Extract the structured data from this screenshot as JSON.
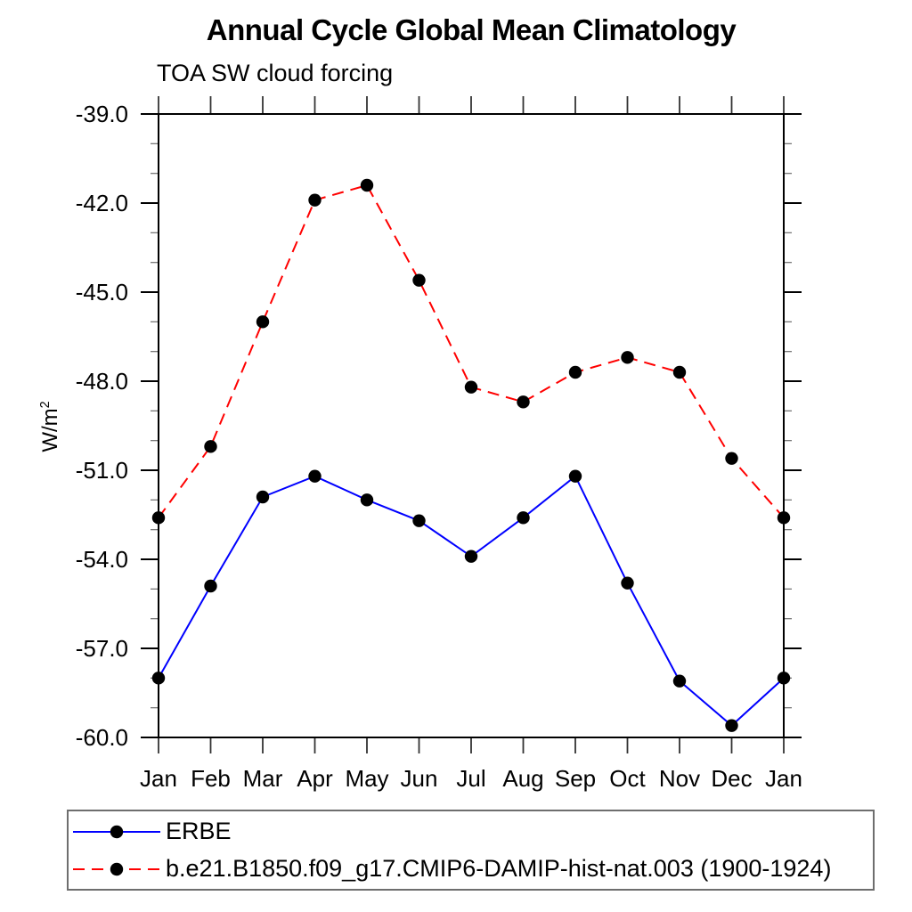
{
  "chart_data": {
    "type": "line",
    "title": "Annual Cycle Global Mean Climatology",
    "subtitle": "TOA SW cloud forcing",
    "ylabel": "W/m²",
    "ylabel_base": "W/m",
    "ylabel_exp": "2",
    "categories": [
      "Jan",
      "Feb",
      "Mar",
      "Apr",
      "May",
      "Jun",
      "Jul",
      "Aug",
      "Sep",
      "Oct",
      "Nov",
      "Dec",
      "Jan"
    ],
    "series": [
      {
        "name": "ERBE",
        "color": "#0000ff",
        "line_style": "solid",
        "marker": "filled-circle",
        "marker_color": "#000000",
        "values": [
          -58.0,
          -54.9,
          -51.9,
          -51.2,
          -52.0,
          -52.7,
          -53.9,
          -52.6,
          -51.2,
          -54.8,
          -58.1,
          -59.6,
          -58.0
        ]
      },
      {
        "name": "b.e21.B1850.f09_g17.CMIP6-DAMIP-hist-nat.003 (1900-1924)",
        "color": "#ff0000",
        "line_style": "dashed",
        "marker": "filled-circle",
        "marker_color": "#000000",
        "values": [
          -52.6,
          -50.2,
          -46.0,
          -41.9,
          -41.4,
          -44.6,
          -48.2,
          -48.7,
          -47.7,
          -47.2,
          -47.7,
          -50.6,
          -52.6
        ]
      }
    ],
    "ylim": [
      -60,
      -39
    ],
    "ytick_major_step": 3,
    "ytick_minor_step": 1,
    "ytick_labels": [
      "-39.0",
      "-42.0",
      "-45.0",
      "-48.0",
      "-51.0",
      "-54.0",
      "-57.0",
      "-60.0"
    ],
    "grid": false,
    "axis_ticks": "outward-all-sides",
    "legend_position": "bottom-left-box"
  }
}
